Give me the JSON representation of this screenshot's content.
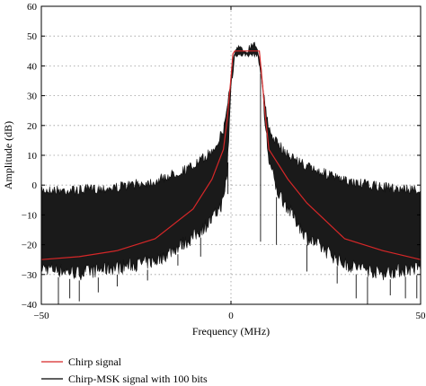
{
  "chart_data": {
    "type": "line",
    "title": "",
    "xlabel": "Frequency (MHz)",
    "ylabel": "Amplitude (dB)",
    "xlim": [
      -50,
      50
    ],
    "ylim": [
      -40,
      60
    ],
    "xticks": [
      -50,
      0,
      50
    ],
    "yticks": [
      -40,
      -30,
      -20,
      -10,
      0,
      10,
      20,
      30,
      40,
      50,
      60
    ],
    "xtick_labels": [
      "−50",
      "0",
      "50"
    ],
    "ytick_labels": [
      "−40",
      "−30",
      "−20",
      "−10",
      "0",
      "10",
      "20",
      "30",
      "40",
      "50",
      "60"
    ],
    "grid": true,
    "legend_position": "bottom-left, below plot",
    "series": [
      {
        "name": "Chirp signal",
        "color": "#d62728",
        "x": [
          -50,
          -40,
          -30,
          -20,
          -10,
          -5,
          -2,
          -1,
          0,
          0.5,
          1,
          2,
          4,
          6,
          7.5,
          8,
          9,
          10,
          15,
          20,
          30,
          40,
          50
        ],
        "y": [
          -25,
          -24,
          -22,
          -18,
          -8,
          2,
          12,
          22,
          36,
          44,
          45,
          45,
          45,
          45,
          45,
          38,
          24,
          12,
          2,
          -6,
          -18,
          -22,
          -25
        ]
      },
      {
        "name": "Chirp-MSK signal with 100 bits",
        "color": "#000000",
        "envelope_upper": {
          "x": [
            -50,
            -40,
            -30,
            -20,
            -10,
            -5,
            -2,
            -1,
            0,
            1,
            2,
            4,
            6,
            7,
            8,
            9,
            10,
            12,
            15,
            20,
            30,
            40,
            50
          ],
          "y": [
            0,
            0,
            1,
            3,
            8,
            13,
            20,
            28,
            38,
            46,
            47,
            46,
            49,
            47,
            40,
            28,
            20,
            16,
            12,
            8,
            3,
            1,
            0
          ]
        },
        "envelope_lower": {
          "x": [
            -50,
            -40,
            -30,
            -20,
            -10,
            -5,
            -2,
            -1,
            0,
            1,
            2,
            4,
            6,
            7,
            8,
            9,
            10,
            12,
            15,
            20,
            30,
            40,
            50
          ],
          "y": [
            -30,
            -32,
            -30,
            -28,
            -20,
            -14,
            -8,
            2,
            30,
            43,
            43,
            43,
            43,
            43,
            36,
            18,
            6,
            -4,
            -10,
            -20,
            -29,
            -32,
            -30
          ]
        },
        "spikes": [
          {
            "x": -45.5,
            "y": -40
          },
          {
            "x": -42.5,
            "y": -38
          },
          {
            "x": -40,
            "y": -39
          },
          {
            "x": -35,
            "y": -36
          },
          {
            "x": -30,
            "y": -34
          },
          {
            "x": -22,
            "y": -32
          },
          {
            "x": -14,
            "y": -27
          },
          {
            "x": -8,
            "y": -24
          },
          {
            "x": -0.8,
            "y": -3
          },
          {
            "x": 7.8,
            "y": -19
          },
          {
            "x": 12,
            "y": -20
          },
          {
            "x": 20,
            "y": -29
          },
          {
            "x": 28,
            "y": -33
          },
          {
            "x": 33,
            "y": -38
          },
          {
            "x": 36,
            "y": -40
          },
          {
            "x": 42,
            "y": -37
          },
          {
            "x": 46,
            "y": -38
          },
          {
            "x": 49,
            "y": -38
          }
        ]
      }
    ]
  }
}
